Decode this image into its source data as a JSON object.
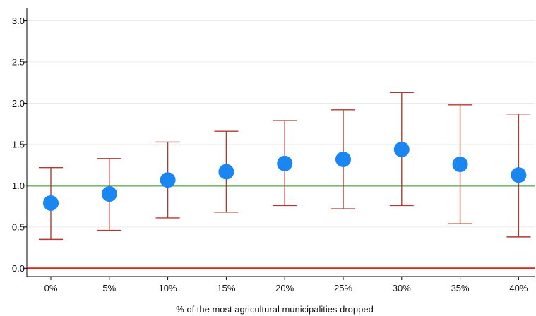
{
  "chart_data": {
    "type": "scatter",
    "title": "",
    "xlabel": "% of the most agricultural municipalities dropped",
    "ylabel": "",
    "categories": [
      "0%",
      "5%",
      "10%",
      "15%",
      "20%",
      "25%",
      "30%",
      "35%",
      "40%"
    ],
    "series": [
      {
        "values": [
          0.79,
          0.9,
          1.07,
          1.17,
          1.27,
          1.32,
          1.44,
          1.26,
          1.13
        ],
        "ci_lower": [
          0.35,
          0.46,
          0.61,
          0.68,
          0.76,
          0.72,
          0.76,
          0.54,
          0.38
        ],
        "ci_upper": [
          1.22,
          1.33,
          1.53,
          1.66,
          1.79,
          1.92,
          2.13,
          1.98,
          1.87
        ]
      }
    ],
    "yticks": [
      "0.0",
      "0.5",
      "1.0",
      "1.5",
      "2.0",
      "2.5",
      "3.0"
    ],
    "ylim": [
      -0.1,
      3.15
    ],
    "reference_lines": [
      {
        "y": 1.0,
        "color": "#2e8b22"
      },
      {
        "y": 0.0,
        "color": "#e0201a"
      }
    ],
    "grid": true,
    "colors": {
      "point": "#1a86f2",
      "error_bar": "#b03a33",
      "grid": "#ececec",
      "axis": "#000000"
    }
  }
}
